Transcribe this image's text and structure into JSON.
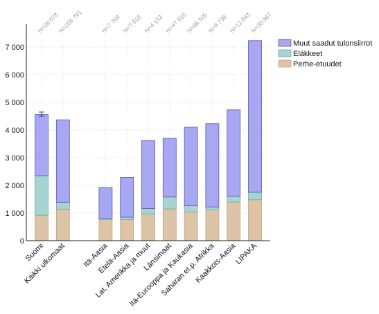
{
  "chart_data": {
    "type": "bar",
    "stacked": true,
    "title": "",
    "xlabel": "",
    "ylabel": "",
    "ylim": [
      0,
      7700
    ],
    "yticks": [
      0,
      1000,
      2000,
      3000,
      4000,
      5000,
      6000,
      7000
    ],
    "ytick_labels": [
      "0",
      "1 000",
      "2 000",
      "3 000",
      "4 000",
      "5 000",
      "6 000",
      "7 000"
    ],
    "grid": true,
    "legend_position": "top-right",
    "categories": [
      "Suomi",
      "Kaikki ulkomaat",
      "",
      "Itä-Aasia",
      "Etelä-Aasia",
      "Lat. Amerikka ja muut",
      "Länsimaat",
      "Itä-Eurooppa ja Kaukasia",
      "Saharan et.p. Afrikka",
      "Kaakkois-Aasia",
      "LIPAKA"
    ],
    "n_labels": [
      "N=28 078",
      "N=205 791",
      "",
      "N=7 768",
      "N=7 018",
      "N=4 152",
      "N=47 810",
      "N=86 505",
      "N=8 738",
      "N=12 843",
      "N=30 967"
    ],
    "series": [
      {
        "name": "Perhe-etuudet",
        "color": "#dcc4a6",
        "stroke": "#c9a27c",
        "values": [
          920,
          1140,
          null,
          760,
          760,
          960,
          1150,
          1040,
          1110,
          1400,
          1480
        ]
      },
      {
        "name": "Eläkkeet",
        "color": "#a7d4d0",
        "stroke": "#6fa8a3",
        "values": [
          1430,
          250,
          null,
          50,
          90,
          200,
          430,
          220,
          110,
          200,
          270
        ]
      },
      {
        "name": "Muut saadut tulonsiirrot",
        "color": "#a8a8f2",
        "stroke": "#5555aa",
        "values": [
          2210,
          2980,
          null,
          1110,
          1440,
          2460,
          2120,
          2840,
          3010,
          3130,
          5480
        ]
      }
    ],
    "error_bar": {
      "category": "Suomi",
      "low": 4500,
      "high": 4650
    }
  }
}
